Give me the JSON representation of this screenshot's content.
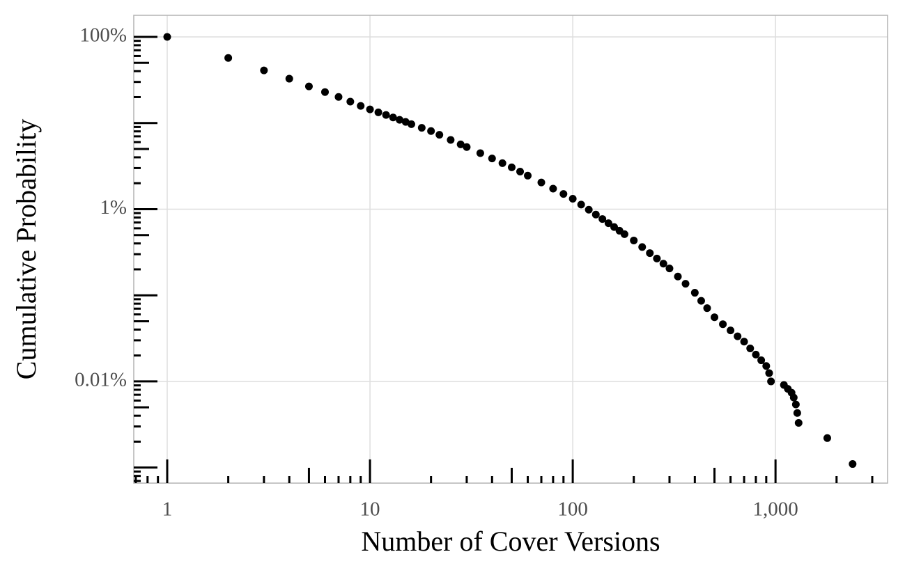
{
  "chart_data": {
    "type": "scatter",
    "x_label": "Number of Cover Versions",
    "y_label": "Cumulative Probability",
    "x_log": true,
    "y_log": true,
    "grid": true,
    "color": "#000000",
    "xlim": [
      0.684,
      3570
    ],
    "ylim": [
      0.00066,
      178
    ],
    "xticks": [
      1,
      10,
      100,
      {
        "value": 1000,
        "label": "1,000"
      }
    ],
    "yticks": [
      {
        "value": 100,
        "label": "100%"
      },
      {
        "value": 1,
        "label": "1%"
      },
      {
        "value": 0.01,
        "label": "0.01%"
      }
    ],
    "x_minor_ticks": [
      0.7,
      0.8,
      0.9,
      1,
      2,
      3,
      4,
      5,
      6,
      7,
      8,
      9,
      10,
      20,
      30,
      40,
      50,
      60,
      70,
      80,
      90,
      100,
      200,
      300,
      400,
      500,
      600,
      700,
      800,
      900,
      1000,
      2000,
      3000
    ],
    "y_minor_ticks": [
      0.0007,
      0.0008,
      0.0009,
      0.001,
      0.002,
      0.003,
      0.004,
      0.005,
      0.006,
      0.007,
      0.008,
      0.009,
      0.01,
      0.02,
      0.03,
      0.04,
      0.05,
      0.06,
      0.07,
      0.08,
      0.09,
      0.1,
      0.2,
      0.3,
      0.4,
      0.5,
      0.6,
      0.7,
      0.8,
      0.9,
      1,
      2,
      3,
      4,
      5,
      6,
      7,
      8,
      9,
      10,
      20,
      30,
      40,
      50,
      60,
      70,
      80,
      90,
      100
    ],
    "x": [
      1,
      2,
      3,
      4,
      5,
      6,
      7,
      8,
      9,
      10,
      11,
      12,
      13,
      14,
      15,
      16,
      18,
      20,
      22,
      25,
      28,
      30,
      35,
      40,
      45,
      50,
      55,
      60,
      70,
      80,
      90,
      100,
      110,
      120,
      130,
      140,
      150,
      160,
      170,
      180,
      200,
      220,
      240,
      260,
      280,
      300,
      330,
      360,
      400,
      430,
      460,
      500,
      550,
      600,
      650,
      700,
      750,
      800,
      850,
      900,
      930,
      950,
      1100,
      1150,
      1200,
      1230,
      1260,
      1280,
      1300,
      1800,
      2400
    ],
    "values": [
      100,
      57,
      40.8,
      32.7,
      26.6,
      22.9,
      20.1,
      17.7,
      15.8,
      14.4,
      13.3,
      12.4,
      11.6,
      10.9,
      10.3,
      9.7,
      8.8,
      8.07,
      7.3,
      6.37,
      5.65,
      5.26,
      4.47,
      3.88,
      3.42,
      3.06,
      2.73,
      2.45,
      2.04,
      1.73,
      1.5,
      1.32,
      1.13,
      0.985,
      0.866,
      0.769,
      0.687,
      0.62,
      0.562,
      0.513,
      0.433,
      0.363,
      0.309,
      0.267,
      0.233,
      0.205,
      0.165,
      0.136,
      0.107,
      0.0863,
      0.0709,
      0.0556,
      0.0462,
      0.0391,
      0.0334,
      0.029,
      0.0242,
      0.0205,
      0.0176,
      0.0151,
      0.0125,
      0.01,
      0.0091,
      0.0082,
      0.0074,
      0.0065,
      0.0054,
      0.0043,
      0.0033,
      0.0022,
      0.0011
    ]
  }
}
